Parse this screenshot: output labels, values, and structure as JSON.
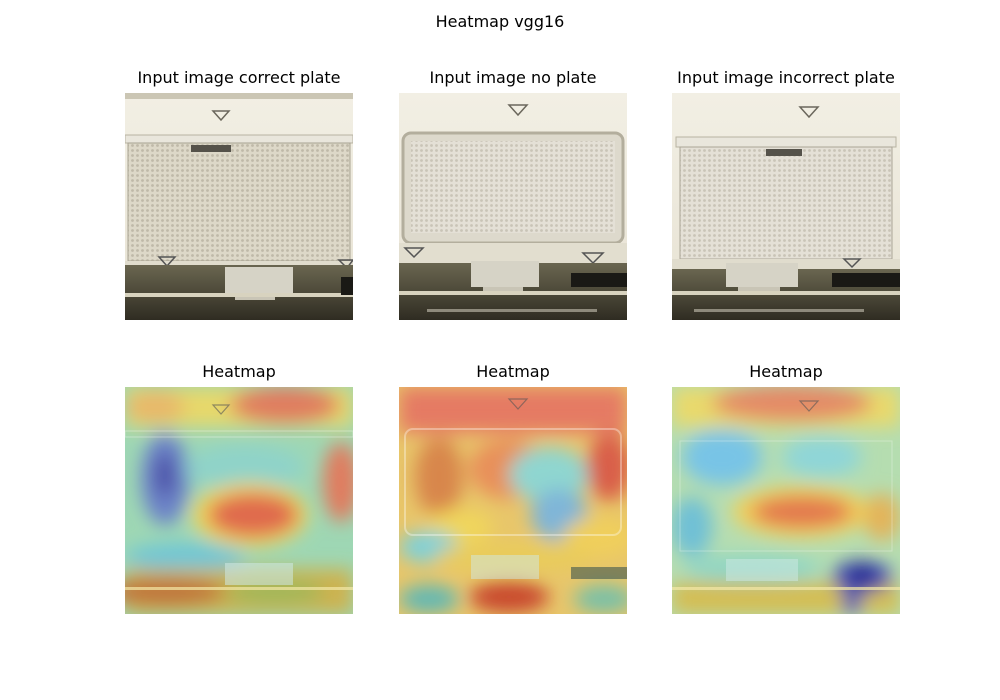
{
  "figure": {
    "title": "Heatmap vgg16",
    "panels": [
      {
        "title": "Input image correct plate",
        "kind": "photo"
      },
      {
        "title": "Input image no plate",
        "kind": "photo"
      },
      {
        "title": "Input image incorrect plate",
        "kind": "photo"
      },
      {
        "title": "Heatmap",
        "kind": "heatmap"
      },
      {
        "title": "Heatmap",
        "kind": "heatmap"
      },
      {
        "title": "Heatmap",
        "kind": "heatmap"
      }
    ]
  }
}
